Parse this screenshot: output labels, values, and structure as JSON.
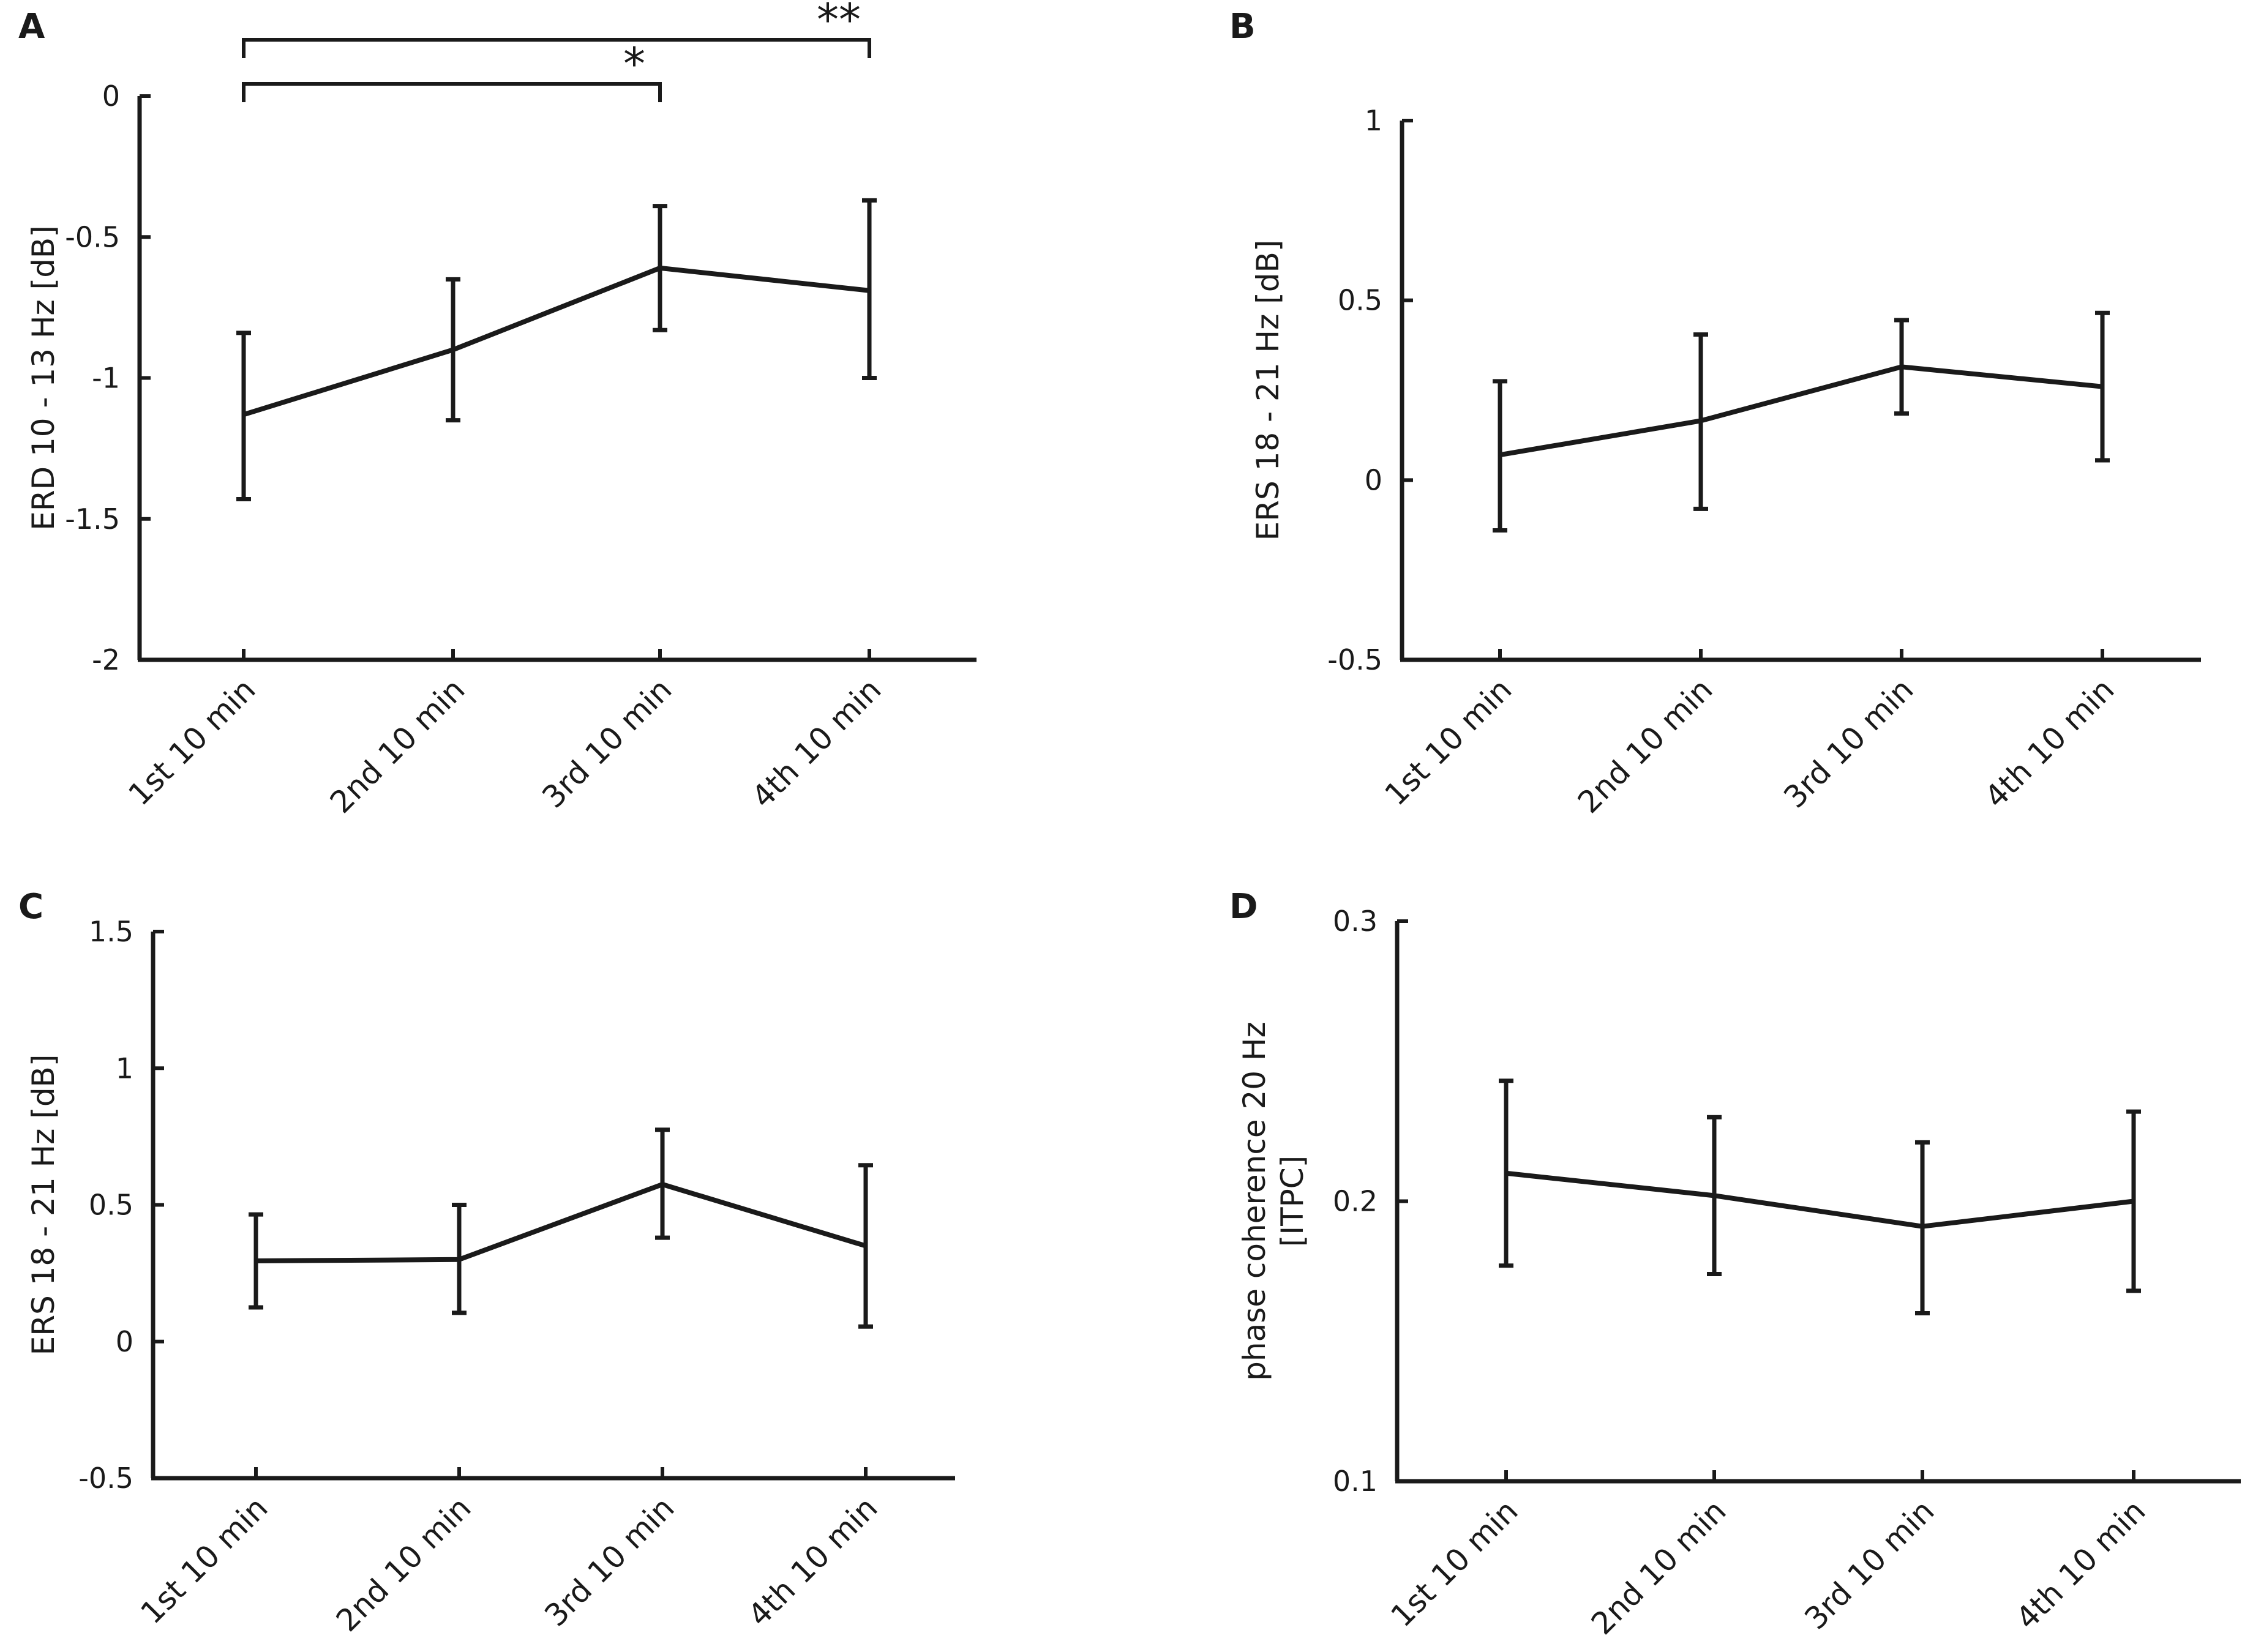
{
  "chart_data": [
    {
      "type": "line",
      "panel": "A",
      "categories": [
        "1st 10 min",
        "2nd 10 min",
        "3rd 10 min",
        "4th 10 min"
      ],
      "series": [
        {
          "name": "ERD 10 - 13 Hz",
          "values": [
            -1.13,
            -0.9,
            -0.61,
            -0.69
          ],
          "err_low": [
            -1.43,
            -1.15,
            -0.83,
            -1.0
          ],
          "err_high": [
            -0.84,
            -0.65,
            -0.39,
            -0.37
          ]
        }
      ],
      "ylabel": "ERD 10 - 13 Hz [dB]",
      "xlabel": "",
      "ylim": [
        -2,
        0
      ],
      "yticks": [
        -2,
        -1.5,
        -1,
        -0.5,
        0
      ],
      "ytick_labels": [
        "-2",
        "-1.5",
        "-1",
        "-0.5",
        "0"
      ],
      "significance": [
        {
          "from": 0,
          "to": 2,
          "label": "*"
        },
        {
          "from": 0,
          "to": 3,
          "label": "**"
        }
      ]
    },
    {
      "type": "line",
      "panel": "B",
      "categories": [
        "1st 10 min",
        "2nd 10 min",
        "3rd 10 min",
        "4th 10 min"
      ],
      "series": [
        {
          "name": "ERS 18 - 21 Hz",
          "values": [
            0.07,
            0.165,
            0.315,
            0.26
          ],
          "err_low": [
            -0.14,
            -0.08,
            0.185,
            0.055
          ],
          "err_high": [
            0.275,
            0.405,
            0.445,
            0.465
          ]
        }
      ],
      "ylabel": "ERS 18 - 21 Hz [dB]",
      "xlabel": "",
      "ylim": [
        -0.5,
        1
      ],
      "yticks": [
        -0.5,
        0,
        0.5,
        1
      ],
      "ytick_labels": [
        "-0.5",
        "0",
        "0.5",
        "1"
      ],
      "significance": []
    },
    {
      "type": "line",
      "panel": "C",
      "categories": [
        "1st 10 min",
        "2nd 10 min",
        "3rd 10 min",
        "4th 10 min"
      ],
      "series": [
        {
          "name": "ERS 18 - 21 Hz",
          "values": [
            0.295,
            0.3,
            0.575,
            0.35
          ],
          "err_low": [
            0.125,
            0.105,
            0.38,
            0.055
          ],
          "err_high": [
            0.465,
            0.5,
            0.775,
            0.645
          ]
        }
      ],
      "ylabel": "ERS 18 - 21 Hz [dB]",
      "xlabel": "",
      "ylim": [
        -0.5,
        1.5
      ],
      "yticks": [
        -0.5,
        0,
        0.5,
        1,
        1.5
      ],
      "ytick_labels": [
        "-0.5",
        "0",
        "0.5",
        "1",
        "1.5"
      ],
      "significance": []
    },
    {
      "type": "line",
      "panel": "D",
      "categories": [
        "1st 10 min",
        "2nd 10 min",
        "3rd 10 min",
        "4th 10 min"
      ],
      "series": [
        {
          "name": "phase coherence 20 Hz",
          "values": [
            0.21,
            0.202,
            0.191,
            0.2
          ],
          "err_low": [
            0.177,
            0.174,
            0.16,
            0.168
          ],
          "err_high": [
            0.243,
            0.23,
            0.221,
            0.232
          ]
        }
      ],
      "ylabel": [
        "phase coherence 20 Hz",
        "[ITPC]"
      ],
      "xlabel": "",
      "ylim": [
        0.1,
        0.3
      ],
      "yticks": [
        0.1,
        0.2,
        0.3
      ],
      "ytick_labels": [
        "0.1",
        "0.2",
        "0.3"
      ],
      "significance": []
    }
  ],
  "colors": {
    "line": "#1a1a1a",
    "background": "#ffffff"
  }
}
